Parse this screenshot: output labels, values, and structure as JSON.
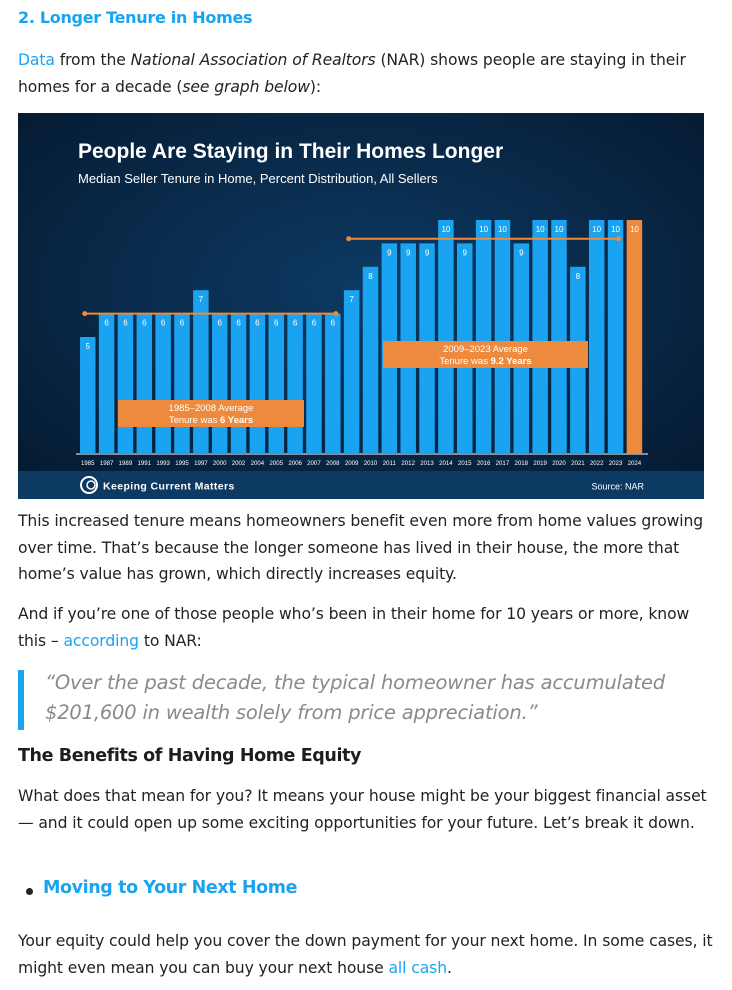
{
  "section": {
    "heading": "2. Longer Tenure in Homes",
    "intro": {
      "link": "Data",
      "t1": " from the ",
      "org": "National Association of Realtors",
      "t2": " (NAR) shows people are staying in their homes for a decade (",
      "paren": "see graph below",
      "t3": "):"
    }
  },
  "chart_data": {
    "type": "bar",
    "title": "People Are Staying in Their Homes Longer",
    "subtitle": "Median Seller Tenure in Home, Percent Distribution, All Sellers",
    "categories": [
      "1985",
      "1987",
      "1989",
      "1991",
      "1993",
      "1995",
      "1997",
      "2000",
      "2002",
      "2004",
      "2005",
      "2006",
      "2007",
      "2008",
      "2009",
      "2010",
      "2011",
      "2012",
      "2013",
      "2014",
      "2015",
      "2016",
      "2017",
      "2018",
      "2019",
      "2020",
      "2021",
      "2022",
      "2023",
      "2024"
    ],
    "values": [
      5,
      6,
      6,
      6,
      6,
      6,
      7,
      6,
      6,
      6,
      6,
      6,
      6,
      6,
      7,
      8,
      9,
      9,
      9,
      10,
      9,
      10,
      10,
      9,
      10,
      10,
      8,
      10,
      10,
      10
    ],
    "ylim": [
      0,
      10
    ],
    "grid": false,
    "highlight_category": "2024",
    "annotations": [
      {
        "line1": "1985–2008 Average",
        "line2_prefix": "Tenure was ",
        "line2_value": "6 Years",
        "value": 6,
        "from": "1985",
        "to": "2008"
      },
      {
        "line1": "2009–2023 Average",
        "line2_prefix": "Tenure was ",
        "line2_value": "9.2 Years",
        "value": 9.2,
        "from": "2009",
        "to": "2023"
      }
    ],
    "footer_brand": "Keeping Current Matters",
    "source": "Source: NAR",
    "colors": {
      "background": "#06213d",
      "bar": "#1aa3f0",
      "highlight": "#ee8a3d",
      "footer": "#0c3a63"
    }
  },
  "paragraphs": {
    "p1": "This increased tenure means homeowners benefit even more from home values growing over time. That’s because the longer someone has lived in their house, the more that home’s value has grown, which directly increases equity.",
    "p2_start": "And if you’re one of those people who’s been in their home for 10 years or more, know this – ",
    "p2_link": "according",
    "p2_end": " to NAR:",
    "quote": "“Over the past decade, the typical homeowner has accumulated $201,600 in wealth solely from price appreciation.”",
    "heading2": "The Benefits of Having Home Equity",
    "p3": "What does that mean for you? It means your house might be your biggest financial asset — and it could open up some exciting opportunities for your future. Let’s break it down.",
    "bullet1": "Moving to Your Next Home",
    "p4_start": "Your equity could help you cover the down payment for your next home. In some cases, it might even mean you can buy your next house ",
    "p4_link": "all cash",
    "p4_end": "."
  }
}
